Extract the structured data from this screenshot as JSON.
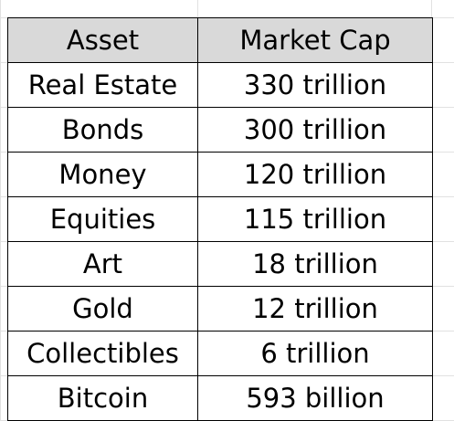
{
  "table": {
    "header": {
      "asset": "Asset",
      "market_cap": "Market Cap"
    },
    "rows": [
      {
        "asset": "Real Estate",
        "market_cap": "330 trillion"
      },
      {
        "asset": "Bonds",
        "market_cap": "300 trillion"
      },
      {
        "asset": "Money",
        "market_cap": "120 trillion"
      },
      {
        "asset": "Equities",
        "market_cap": "115 trillion"
      },
      {
        "asset": "Art",
        "market_cap": "18 trillion"
      },
      {
        "asset": "Gold",
        "market_cap": "12 trillion"
      },
      {
        "asset": "Collectibles",
        "market_cap": "6 trillion"
      },
      {
        "asset": "Bitcoin",
        "market_cap": "593 billion"
      }
    ]
  },
  "colors": {
    "header_fill": "#d9d9d9",
    "border": "#000000",
    "gridline": "#e1e1e1"
  }
}
